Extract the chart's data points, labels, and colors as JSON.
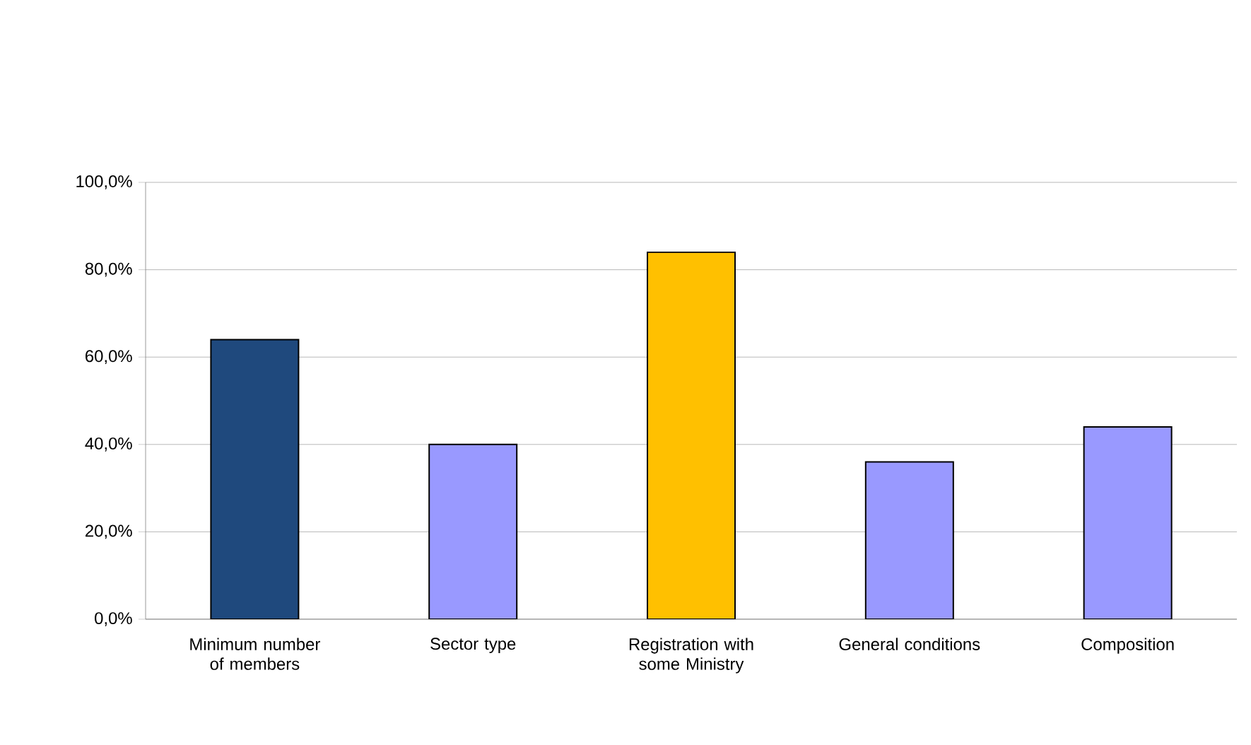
{
  "chart_data": {
    "type": "bar",
    "categories": [
      "Minimum number of members",
      "Sector type",
      "Registration with some Ministry",
      "General conditions",
      "Composition"
    ],
    "values": [
      64,
      40,
      84,
      36,
      44
    ],
    "colors": [
      "#1f497d",
      "#9999ff",
      "#ffc000",
      "#9999ff",
      "#9999ff"
    ],
    "ylim": [
      0,
      100
    ],
    "yticks": [
      {
        "value": 0,
        "label": "0,0%"
      },
      {
        "value": 20,
        "label": "20,0%"
      },
      {
        "value": 40,
        "label": "40,0%"
      },
      {
        "value": 60,
        "label": "60,0%"
      },
      {
        "value": 80,
        "label": "80,0%"
      },
      {
        "value": 100,
        "label": "100,0%"
      }
    ],
    "grid": "y"
  }
}
